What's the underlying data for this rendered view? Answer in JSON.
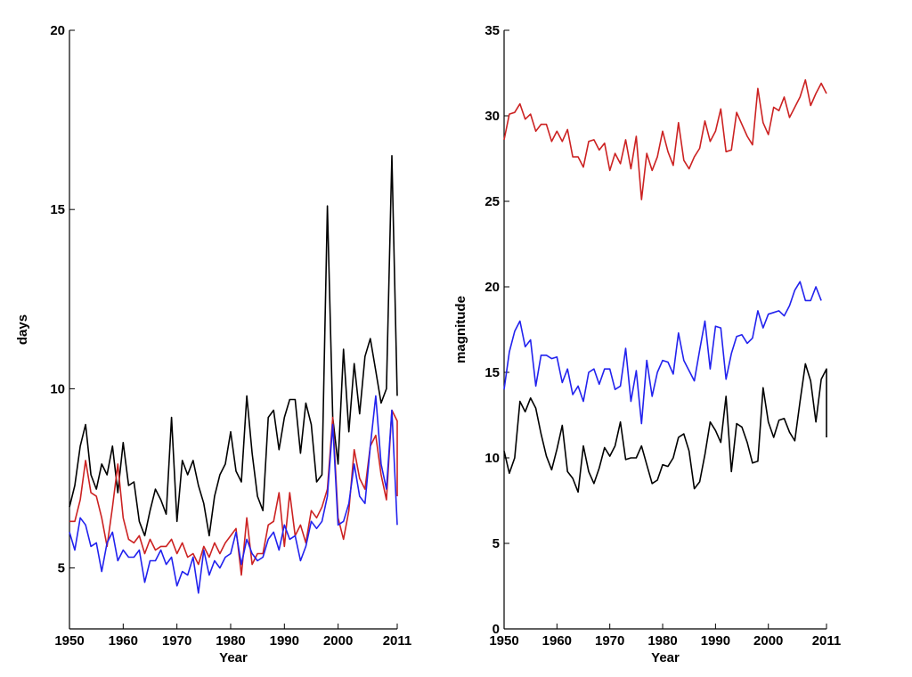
{
  "figure": {
    "title": ""
  },
  "chart_data": [
    {
      "type": "line",
      "title": "",
      "xlabel": "Year",
      "ylabel": "days",
      "xlim": [
        1950,
        2011
      ],
      "ylim": [
        3.3,
        20
      ],
      "xticks": [
        1950,
        1960,
        1970,
        1980,
        1990,
        2000,
        2011
      ],
      "yticks": [
        5,
        10,
        15,
        20
      ],
      "grid": false,
      "x_start": 1950,
      "series": [
        {
          "color": "#000000",
          "values": [
            6.7,
            7.3,
            8.4,
            9.0,
            7.6,
            7.2,
            7.9,
            7.6,
            8.4,
            7.1,
            8.5,
            7.3,
            7.4,
            6.3,
            5.9,
            6.6,
            7.2,
            6.9,
            6.5,
            9.2,
            6.3,
            8.0,
            7.6,
            8.0,
            7.3,
            6.8,
            5.9,
            7.0,
            7.6,
            7.9,
            8.8,
            7.7,
            7.4,
            9.8,
            8.2,
            7.0,
            6.6,
            9.2,
            9.4,
            8.3,
            9.2,
            9.7,
            9.7,
            8.2,
            9.6,
            9.0,
            7.4,
            7.6,
            15.1,
            9.2,
            7.9,
            11.1,
            8.8,
            10.7,
            9.3,
            10.9,
            11.4,
            10.5,
            9.6,
            10.0,
            16.5,
            9.8
          ]
        },
        {
          "color": "#cc2222",
          "values": [
            6.3,
            6.3,
            6.9,
            8.0,
            7.1,
            7.0,
            6.4,
            5.6,
            6.7,
            7.9,
            6.4,
            5.8,
            5.7,
            5.9,
            5.4,
            5.8,
            5.5,
            5.6,
            5.6,
            5.8,
            5.4,
            5.7,
            5.3,
            5.4,
            5.1,
            5.6,
            5.3,
            5.7,
            5.4,
            5.7,
            5.9,
            6.1,
            4.8,
            6.4,
            5.1,
            5.4,
            5.4,
            6.2,
            6.3,
            7.1,
            5.6,
            7.1,
            5.9,
            6.2,
            5.7,
            6.6,
            6.4,
            6.7,
            7.2,
            9.2,
            6.4,
            5.8,
            6.6,
            8.3,
            7.5,
            7.2,
            8.4,
            8.7,
            7.6,
            6.9,
            9.4,
            9.1,
            7.0
          ]
        },
        {
          "color": "#2222ee",
          "values": [
            6.0,
            5.5,
            6.4,
            6.2,
            5.6,
            5.7,
            4.9,
            5.7,
            6.0,
            5.2,
            5.5,
            5.3,
            5.3,
            5.5,
            4.6,
            5.2,
            5.2,
            5.5,
            5.1,
            5.3,
            4.5,
            4.9,
            4.8,
            5.3,
            4.3,
            5.5,
            4.8,
            5.2,
            5.0,
            5.3,
            5.4,
            6.0,
            5.1,
            5.8,
            5.4,
            5.2,
            5.3,
            5.8,
            6.0,
            5.5,
            6.2,
            5.8,
            5.9,
            5.2,
            5.6,
            6.3,
            6.1,
            6.3,
            7.0,
            9.0,
            6.2,
            6.3,
            6.8,
            7.9,
            7.0,
            6.8,
            8.4,
            9.8,
            7.9,
            7.2,
            9.4,
            6.2
          ]
        }
      ]
    },
    {
      "type": "line",
      "title": "",
      "xlabel": "Year",
      "ylabel": "magnitude",
      "xlim": [
        1950,
        2011
      ],
      "ylim": [
        0,
        35
      ],
      "xticks": [
        1950,
        1960,
        1970,
        1980,
        1990,
        2000,
        2011
      ],
      "yticks": [
        0,
        5,
        10,
        15,
        20,
        25,
        30,
        35
      ],
      "grid": false,
      "x_start": 1950,
      "series": [
        {
          "color": "#cc2222",
          "values": [
            28.6,
            30.1,
            30.2,
            30.7,
            29.8,
            30.1,
            29.1,
            29.5,
            29.5,
            28.5,
            29.1,
            28.5,
            29.2,
            27.6,
            27.6,
            27.0,
            28.5,
            28.6,
            28.0,
            28.4,
            26.8,
            27.8,
            27.2,
            28.6,
            26.9,
            28.8,
            25.1,
            27.8,
            26.8,
            27.6,
            29.1,
            27.9,
            27.1,
            29.6,
            27.4,
            26.9,
            27.6,
            28.1,
            29.7,
            28.5,
            29.1,
            30.4,
            27.9,
            28.0,
            30.2,
            29.5,
            28.8,
            28.3,
            31.6,
            29.6,
            28.9,
            30.5,
            30.3,
            31.1,
            29.9,
            30.5,
            31.1,
            32.1,
            30.6,
            31.3,
            31.9,
            31.3
          ]
        },
        {
          "color": "#2222ee",
          "values": [
            14.0,
            16.2,
            17.4,
            18.0,
            16.5,
            16.9,
            14.2,
            16.0,
            16.0,
            15.8,
            15.9,
            14.4,
            15.2,
            13.7,
            14.2,
            13.3,
            15.0,
            15.2,
            14.3,
            15.2,
            15.2,
            14.0,
            14.2,
            16.4,
            13.3,
            15.1,
            12.0,
            15.7,
            13.6,
            15.0,
            15.7,
            15.6,
            14.9,
            17.3,
            15.7,
            15.1,
            14.5,
            16.3,
            18.0,
            15.2,
            17.7,
            17.6,
            14.6,
            16.1,
            17.1,
            17.2,
            16.7,
            17.0,
            18.6,
            17.6,
            18.4,
            18.5,
            18.6,
            18.3,
            18.9,
            19.8,
            20.3,
            19.2,
            19.2,
            20.0,
            19.2
          ]
        },
        {
          "color": "#000000",
          "values": [
            10.4,
            9.1,
            10.0,
            13.3,
            12.7,
            13.5,
            12.9,
            11.4,
            10.1,
            9.3,
            10.5,
            11.9,
            9.2,
            8.8,
            8.0,
            10.7,
            9.2,
            8.5,
            9.4,
            10.6,
            10.1,
            10.7,
            12.1,
            9.9,
            10.0,
            10.0,
            10.7,
            9.6,
            8.5,
            8.7,
            9.6,
            9.5,
            10.0,
            11.2,
            11.4,
            10.4,
            8.2,
            8.6,
            10.2,
            12.1,
            11.6,
            10.9,
            13.6,
            9.2,
            12.0,
            11.8,
            10.9,
            9.7,
            9.8,
            14.1,
            12.1,
            11.2,
            12.2,
            12.3,
            11.5,
            11.0,
            13.3,
            15.5,
            14.5,
            12.1,
            14.6,
            15.2,
            11.2
          ]
        }
      ]
    }
  ]
}
